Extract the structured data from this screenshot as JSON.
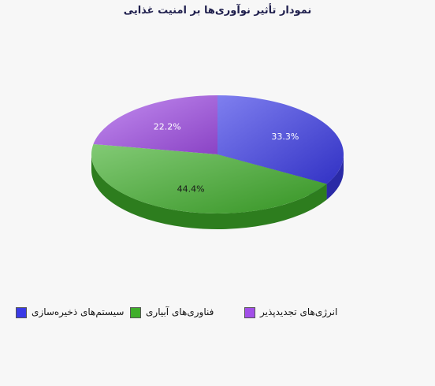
{
  "chart_data": {
    "type": "pie",
    "title": "نمودار تأثیر نوآوری‌ها بر امنیت غذایی",
    "slices": [
      {
        "name": "سیستم‌های ذخیره‌سازی",
        "value": 33.3,
        "label": "33.3%",
        "color": "#3a3ae6"
      },
      {
        "name": "فناوری‌های آبیاری",
        "value": 44.4,
        "label": "44.4%",
        "color": "#3fae2a"
      },
      {
        "name": "انرژی‌های  تجدیدپذیر",
        "value": 22.2,
        "label": "22.2%",
        "color": "#a24fe8"
      }
    ],
    "legend_position": "bottom",
    "three_d": true
  }
}
